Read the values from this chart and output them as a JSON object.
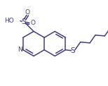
{
  "bg_color": "#ffffff",
  "line_color": "#404080",
  "text_color": "#404080",
  "lw": 1.1,
  "figsize": [
    1.54,
    1.22
  ],
  "dpi": 100,
  "xlim": [
    0,
    154
  ],
  "ylim": [
    0,
    122
  ]
}
